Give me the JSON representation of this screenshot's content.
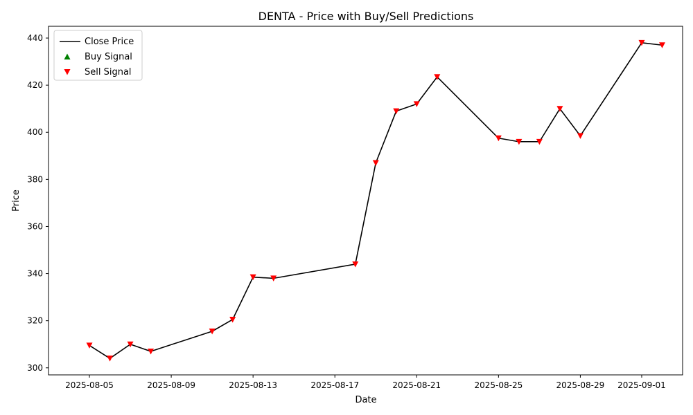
{
  "chart_data": {
    "type": "line",
    "title": "DENTA - Price with Buy/Sell Predictions",
    "xlabel": "Date",
    "ylabel": "Price",
    "xlim": [
      "2025-08-03",
      "2025-09-03"
    ],
    "ylim": [
      297,
      445
    ],
    "x_ticks": [
      "2025-08-05",
      "2025-08-09",
      "2025-08-13",
      "2025-08-17",
      "2025-08-21",
      "2025-08-25",
      "2025-08-29",
      "2025-09-01"
    ],
    "y_ticks": [
      300,
      320,
      340,
      360,
      380,
      400,
      420,
      440
    ],
    "legend_position": "top-left",
    "series": [
      {
        "name": "Close Price",
        "color": "#000000",
        "x": [
          "2025-08-05",
          "2025-08-06",
          "2025-08-07",
          "2025-08-08",
          "2025-08-11",
          "2025-08-12",
          "2025-08-13",
          "2025-08-14",
          "2025-08-18",
          "2025-08-19",
          "2025-08-20",
          "2025-08-21",
          "2025-08-22",
          "2025-08-25",
          "2025-08-26",
          "2025-08-27",
          "2025-08-28",
          "2025-08-29",
          "2025-09-01",
          "2025-09-02"
        ],
        "y": [
          309.5,
          304,
          310,
          307,
          315.5,
          320.5,
          338.5,
          338,
          344,
          387,
          409,
          412,
          423.5,
          397.5,
          396,
          396,
          410,
          398.5,
          438,
          437
        ]
      },
      {
        "name": "Buy Signal",
        "color": "#008000",
        "marker": "triangle-up",
        "x": [],
        "y": []
      },
      {
        "name": "Sell Signal",
        "color": "#ff0000",
        "marker": "triangle-down",
        "x": [
          "2025-08-05",
          "2025-08-06",
          "2025-08-07",
          "2025-08-08",
          "2025-08-11",
          "2025-08-12",
          "2025-08-13",
          "2025-08-14",
          "2025-08-18",
          "2025-08-19",
          "2025-08-20",
          "2025-08-21",
          "2025-08-22",
          "2025-08-25",
          "2025-08-26",
          "2025-08-27",
          "2025-08-28",
          "2025-08-29",
          "2025-09-01",
          "2025-09-02"
        ],
        "y": [
          309.5,
          304,
          310,
          307,
          315.5,
          320.5,
          338.5,
          338,
          344,
          387,
          409,
          412,
          423.5,
          397.5,
          396,
          396,
          410,
          398.5,
          438,
          437
        ]
      }
    ],
    "grid": false
  }
}
